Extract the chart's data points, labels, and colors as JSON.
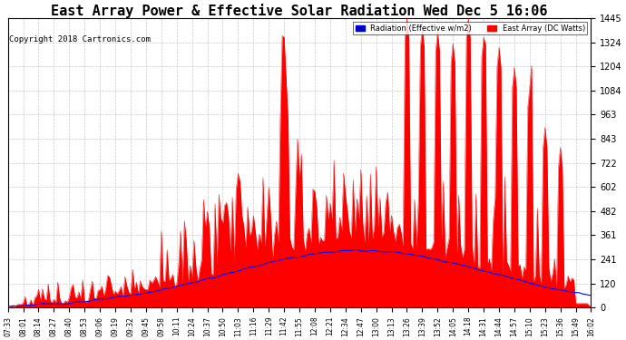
{
  "title": "East Array Power & Effective Solar Radiation Wed Dec 5 16:06",
  "copyright": "Copyright 2018 Cartronics.com",
  "yticks": [
    0.0,
    120.4,
    240.8,
    361.2,
    481.6,
    602.0,
    722.4,
    842.8,
    963.2,
    1083.6,
    1204.0,
    1324.4,
    1444.8
  ],
  "ymax": 1444.8,
  "ymin": 0.0,
  "legend_labels": [
    "Radiation (Effective w/m2)",
    "East Array (DC Watts)"
  ],
  "bg_color": "#ffffff",
  "grid_color": "#bbbbbb",
  "title_fontsize": 11,
  "xtick_labels": [
    "07:33",
    "08:01",
    "08:14",
    "08:27",
    "08:40",
    "08:53",
    "09:06",
    "09:19",
    "09:32",
    "09:45",
    "09:58",
    "10:11",
    "10:24",
    "10:37",
    "10:50",
    "11:03",
    "11:16",
    "11:29",
    "11:42",
    "11:55",
    "12:08",
    "12:21",
    "12:34",
    "12:47",
    "13:00",
    "13:13",
    "13:26",
    "13:39",
    "13:52",
    "14:05",
    "14:18",
    "14:31",
    "14:44",
    "14:57",
    "15:10",
    "15:23",
    "15:36",
    "15:49",
    "16:02"
  ]
}
